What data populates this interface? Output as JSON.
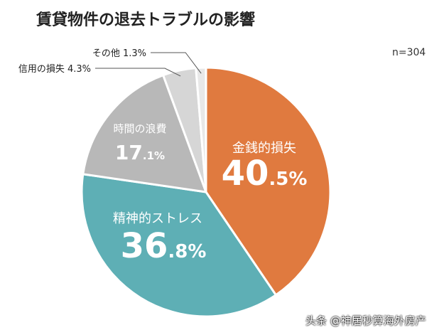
{
  "title": "賃貸物件の退去トラブルの影響",
  "sample_size": "n=304",
  "watermark": "头条 @神居秒算海外房产",
  "chart_data": {
    "type": "pie",
    "title": "賃貸物件の退去トラブルの影響",
    "slices": [
      {
        "label": "金銭的損失",
        "value": 40.5,
        "num": "40",
        "dec": ".5%",
        "color": "#e07a3f"
      },
      {
        "label": "精神的ストレス",
        "value": 36.8,
        "num": "36",
        "dec": ".8%",
        "color": "#5eafb5"
      },
      {
        "label": "時間の浪費",
        "value": 17.1,
        "num": "17",
        "dec": ".1%",
        "color": "#b8b8b8"
      },
      {
        "label": "信用の損失",
        "value": 4.3,
        "display": "信用の損失 4.3%",
        "color": "#d6d6d6"
      },
      {
        "label": "その他",
        "value": 1.3,
        "display": "その他 1.3%",
        "color": "#e8e8e8"
      }
    ]
  }
}
